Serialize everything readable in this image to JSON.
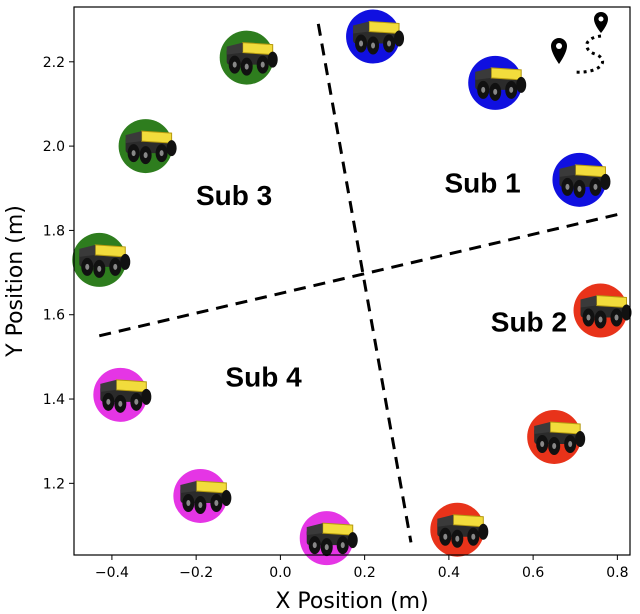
{
  "chart_data": {
    "type": "scatter",
    "title": "",
    "xlabel": "X Position (m)",
    "ylabel": "Y Position (m)",
    "xlim": [
      -0.49,
      0.83
    ],
    "ylim": [
      1.03,
      2.33
    ],
    "xticks": [
      {
        "value": -0.4,
        "label": "−0.4"
      },
      {
        "value": -0.2,
        "label": "−0.2"
      },
      {
        "value": 0.0,
        "label": "0.0"
      },
      {
        "value": 0.2,
        "label": "0.2"
      },
      {
        "value": 0.4,
        "label": "0.4"
      },
      {
        "value": 0.6,
        "label": "0.6"
      },
      {
        "value": 0.8,
        "label": "0.8"
      }
    ],
    "yticks": [
      {
        "value": 1.2,
        "label": "1.2"
      },
      {
        "value": 1.4,
        "label": "1.4"
      },
      {
        "value": 1.6,
        "label": "1.6"
      },
      {
        "value": 1.8,
        "label": "1.8"
      },
      {
        "value": 2.0,
        "label": "2.0"
      },
      {
        "value": 2.2,
        "label": "2.2"
      }
    ],
    "grid": false,
    "series": [
      {
        "name": "Sub 1",
        "color": "#1010e0",
        "points": [
          [
            0.22,
            2.26
          ],
          [
            0.51,
            2.15
          ],
          [
            0.71,
            1.92
          ]
        ]
      },
      {
        "name": "Sub 2",
        "color": "#e8331a",
        "points": [
          [
            0.76,
            1.61
          ],
          [
            0.65,
            1.31
          ],
          [
            0.42,
            1.09
          ]
        ]
      },
      {
        "name": "Sub 3",
        "color": "#2e7d1e",
        "points": [
          [
            -0.08,
            2.21
          ],
          [
            -0.32,
            2.0
          ],
          [
            -0.43,
            1.73
          ]
        ]
      },
      {
        "name": "Sub 4",
        "color": "#e535e5",
        "points": [
          [
            -0.38,
            1.41
          ],
          [
            -0.19,
            1.17
          ],
          [
            0.11,
            1.07
          ]
        ]
      }
    ],
    "dividers": [
      {
        "name": "divider-vertical",
        "from": [
          0.09,
          2.29
        ],
        "to": [
          0.31,
          1.06
        ]
      },
      {
        "name": "divider-horizontal",
        "from": [
          -0.43,
          1.55
        ],
        "to": [
          0.81,
          1.84
        ]
      }
    ],
    "regions": [
      {
        "label": "Sub 1",
        "x": 0.48,
        "y": 1.89
      },
      {
        "label": "Sub 2",
        "x": 0.59,
        "y": 1.56
      },
      {
        "label": "Sub 3",
        "x": -0.11,
        "y": 1.86
      },
      {
        "label": "Sub 4",
        "x": -0.04,
        "y": 1.43
      }
    ],
    "annotations": [
      {
        "type": "route-icon",
        "description": "map pin path icon",
        "x": 0.75,
        "y": 2.25
      }
    ]
  }
}
